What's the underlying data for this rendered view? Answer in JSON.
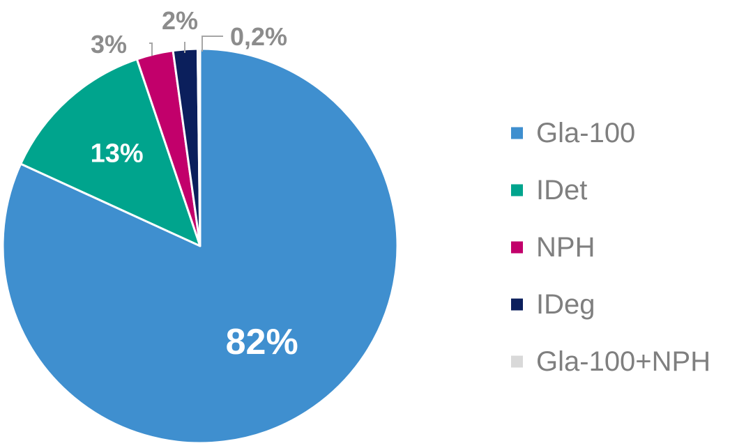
{
  "chart_data": {
    "type": "pie",
    "start_angle_deg": 0,
    "direction": "clockwise",
    "slices": [
      {
        "label": "Gla-100",
        "value": 82,
        "display": "82%",
        "color": "#3f8fcf",
        "label_position": "inside"
      },
      {
        "label": "IDet",
        "value": 13,
        "display": "13%",
        "color": "#00a48d",
        "label_position": "inside"
      },
      {
        "label": "NPH",
        "value": 3,
        "display": "3%",
        "color": "#c2006b",
        "label_position": "outside"
      },
      {
        "label": "IDeg",
        "value": 2,
        "display": "2%",
        "color": "#0b1f5c",
        "label_position": "outside"
      },
      {
        "label": "Gla-100+NPH",
        "value": 0.2,
        "display": "0,2%",
        "color": "#d9d9d9",
        "label_position": "outside"
      }
    ],
    "legend": {
      "placement": "right",
      "entries": [
        "Gla-100",
        "IDet",
        "NPH",
        "IDeg",
        "Gla-100+NPH"
      ]
    }
  }
}
